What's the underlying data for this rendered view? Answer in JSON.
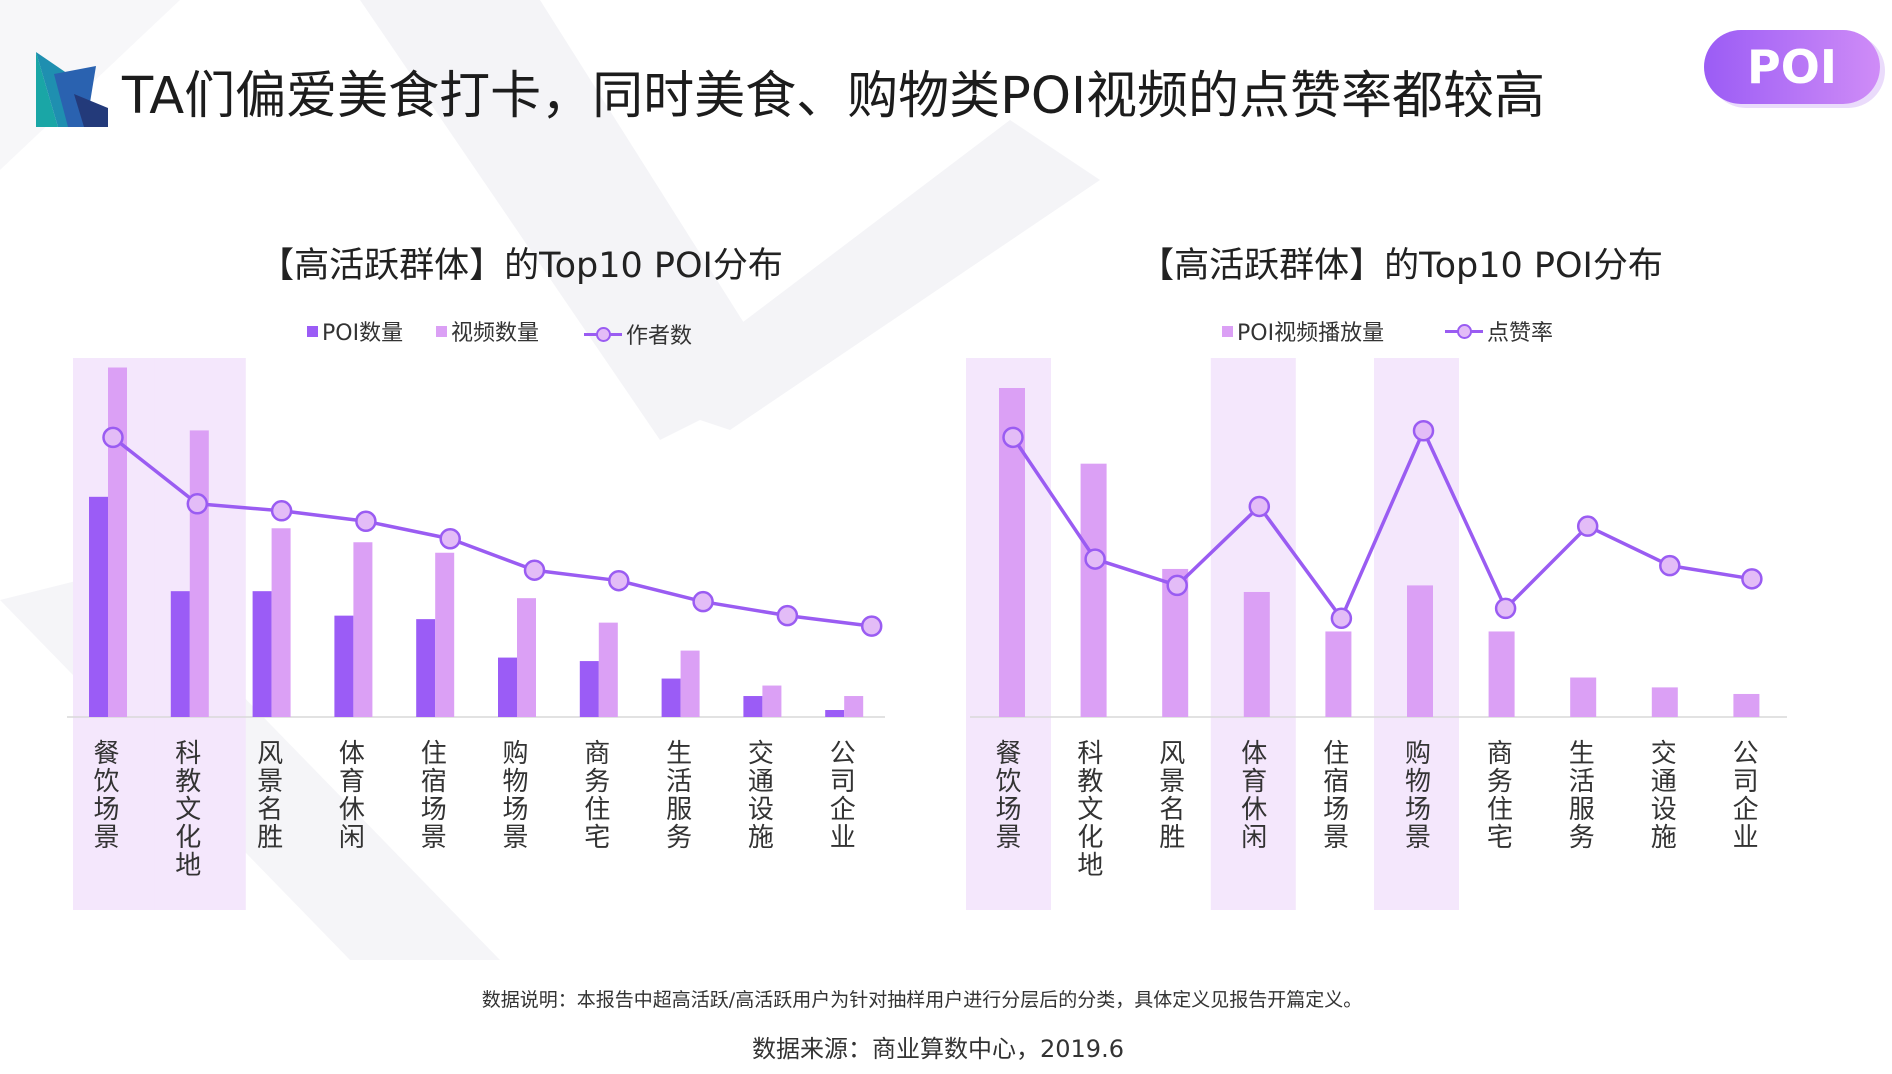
{
  "header": {
    "logo_icon": "triangle-fan-logo",
    "title": "TA们偏爱美食打卡，同时美食、购物类POI视频的点赞率都较高",
    "badge": "POI"
  },
  "colors": {
    "highlight_band": "#f4e7fc",
    "baseline": "#d9d9d9",
    "badge_gradient": [
      "#9b5cf5",
      "#cf8cf7"
    ]
  },
  "chart_data": [
    {
      "type": "bar",
      "title": "【高活跃群体】的Top10 POI分布",
      "xlabel": "",
      "ylabel": "",
      "y_axis_visible": false,
      "grid": false,
      "legend": "top-center",
      "categories": [
        "餐饮场景",
        "科教文化地",
        "风景名胜",
        "体育休闲",
        "住宿场景",
        "购物场景",
        "商务住宅",
        "生活服务",
        "交通设施",
        "公司企业"
      ],
      "highlighted_indices": [
        0,
        1
      ],
      "series": [
        {
          "name": "POI数量",
          "type": "bar",
          "color": "#9b5cf6",
          "values": [
            63,
            36,
            36,
            29,
            28,
            17,
            16,
            11,
            6,
            2
          ]
        },
        {
          "name": "视频数量",
          "type": "bar",
          "color": "#dba0f5",
          "values": [
            100,
            82,
            54,
            50,
            47,
            34,
            27,
            19,
            9,
            6
          ]
        },
        {
          "name": "作者数",
          "type": "line",
          "color": "#9a5cf2",
          "marker_fill": "#e3bcf7",
          "values": [
            80,
            61,
            59,
            56,
            51,
            42,
            39,
            33,
            29,
            26
          ]
        }
      ]
    },
    {
      "type": "bar",
      "title": "【高活跃群体】的Top10 POI分布",
      "xlabel": "",
      "ylabel": "",
      "y_axis_visible": false,
      "grid": false,
      "legend": "top-center",
      "categories": [
        "餐饮场景",
        "科教文化地",
        "风景名胜",
        "体育休闲",
        "住宿场景",
        "购物场景",
        "商务住宅",
        "生活服务",
        "交通设施",
        "公司企业"
      ],
      "highlighted_indices": [
        0,
        3,
        5
      ],
      "series": [
        {
          "name": "POI视频播放量",
          "type": "bar",
          "color": "#dba0f5",
          "values": [
            100,
            77,
            45,
            38,
            26,
            40,
            26,
            12,
            9,
            7
          ]
        },
        {
          "name": "点赞率",
          "type": "line",
          "color": "#9a5cf2",
          "marker_fill": "#e3bcf7",
          "values": [
            85,
            48,
            40,
            64,
            30,
            87,
            33,
            58,
            46,
            42
          ]
        }
      ]
    }
  ],
  "footer": {
    "note": "数据说明：本报告中超高活跃/高活跃用户为针对抽样用户进行分层后的分类，具体定义见报告开篇定义。",
    "source": "数据来源：商业算数中心，2019.6"
  }
}
